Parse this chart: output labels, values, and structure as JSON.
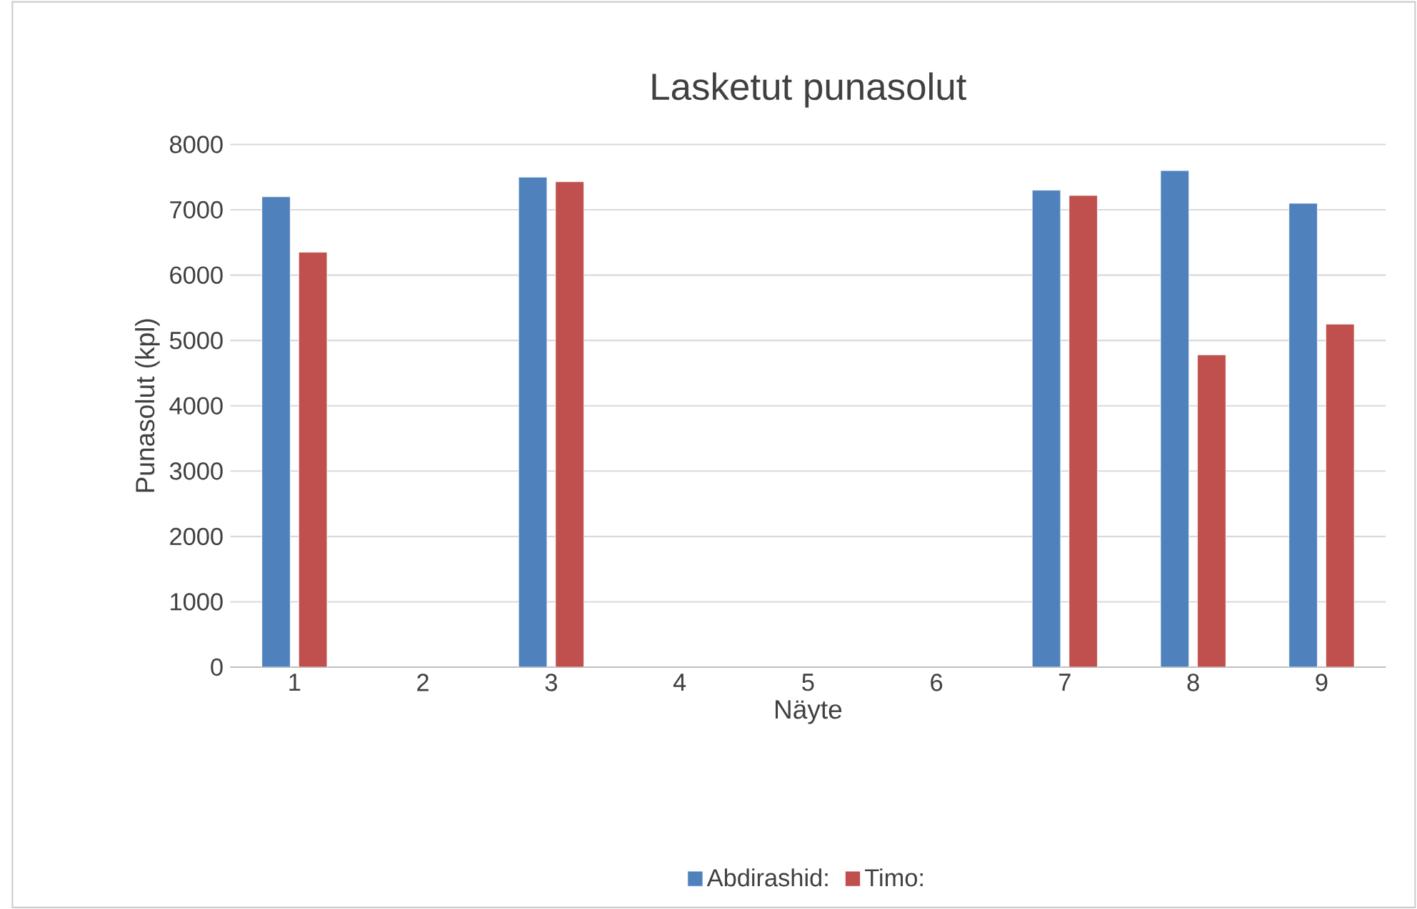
{
  "chart_data": {
    "type": "bar",
    "title": "Lasketut punasolut",
    "xlabel": "Näyte",
    "ylabel": "Punasolut (kpl)",
    "categories": [
      "1",
      "2",
      "3",
      "4",
      "5",
      "6",
      "7",
      "8",
      "9"
    ],
    "series": [
      {
        "name": "Abdirashid:",
        "color": "#4f81bd",
        "values": [
          7200,
          null,
          7500,
          null,
          null,
          null,
          7300,
          7600,
          7100
        ]
      },
      {
        "name": "Timo:",
        "color": "#c0504d",
        "values": [
          6350,
          null,
          7430,
          null,
          null,
          null,
          7220,
          4780,
          5250
        ]
      }
    ],
    "ylim": [
      0,
      8000
    ],
    "yticks": [
      0,
      1000,
      2000,
      3000,
      4000,
      5000,
      6000,
      7000,
      8000
    ],
    "grid": "y",
    "legend": "bottom"
  }
}
